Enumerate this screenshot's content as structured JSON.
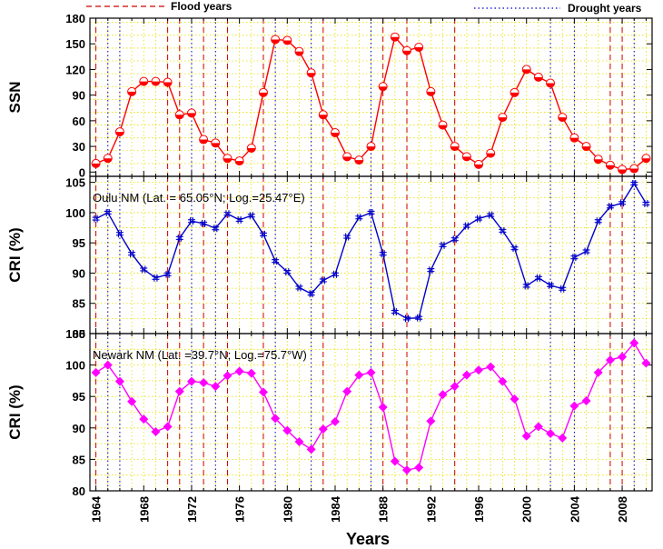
{
  "legend": {
    "flood_label": "Flood years",
    "drought_label": "Drought years",
    "flood_color": "#cc0000",
    "drought_color": "#0000cc"
  },
  "chart_data": {
    "type": "line",
    "xlabel": "Years",
    "x_range": [
      1963.5,
      2010.5
    ],
    "x_tick_labels": [
      "1964",
      "1968",
      "1972",
      "1976",
      "1980",
      "1984",
      "1988",
      "1992",
      "1996",
      "2000",
      "2004",
      "2008"
    ],
    "flood_years": [
      1964,
      1970,
      1971,
      1973,
      1975,
      1978,
      1983,
      1988,
      1990,
      1994,
      2007,
      2008
    ],
    "drought_years": [
      1965,
      1966,
      1972,
      1974,
      1979,
      1982,
      1987,
      2002,
      2004,
      2009
    ],
    "panels": [
      {
        "ylabel": "SSN",
        "annotation": "",
        "ylim": [
          -5,
          180
        ],
        "y_ticks": [
          0,
          30,
          60,
          90,
          120,
          150,
          180
        ],
        "color": "#ff0000",
        "marker": "half-circle",
        "x": [
          1964,
          1965,
          1966,
          1967,
          1968,
          1969,
          1970,
          1971,
          1972,
          1973,
          1974,
          1975,
          1976,
          1977,
          1978,
          1979,
          1980,
          1981,
          1982,
          1983,
          1984,
          1985,
          1986,
          1987,
          1988,
          1989,
          1990,
          1991,
          1992,
          1993,
          1994,
          1995,
          1996,
          1997,
          1998,
          1999,
          2000,
          2001,
          2002,
          2003,
          2004,
          2005,
          2006,
          2007,
          2008,
          2009,
          2010
        ],
        "values": [
          10,
          16,
          47,
          94,
          106,
          106,
          105,
          67,
          69,
          38,
          34,
          16,
          13,
          28,
          93,
          155,
          154,
          141,
          116,
          67,
          46,
          18,
          14,
          30,
          100,
          158,
          142,
          146,
          94,
          55,
          30,
          18,
          9,
          22,
          64,
          93,
          120,
          111,
          104,
          64,
          40,
          30,
          15,
          8,
          3,
          4,
          16
        ]
      },
      {
        "ylabel": "CRI (%)",
        "annotation": "Oulu NM (Lat. = 65.05°N; Log.=25.47°E)",
        "ylim": [
          80,
          106
        ],
        "y_ticks": [
          80,
          85,
          90,
          95,
          100,
          105
        ],
        "color": "#0000cc",
        "marker": "cross",
        "x": [
          1964,
          1965,
          1966,
          1967,
          1968,
          1969,
          1970,
          1971,
          1972,
          1973,
          1974,
          1975,
          1976,
          1977,
          1978,
          1979,
          1980,
          1981,
          1982,
          1983,
          1984,
          1985,
          1986,
          1987,
          1988,
          1989,
          1990,
          1991,
          1992,
          1993,
          1994,
          1995,
          1996,
          1997,
          1998,
          1999,
          2000,
          2001,
          2002,
          2003,
          2004,
          2005,
          2006,
          2007,
          2008,
          2009,
          2010
        ],
        "values": [
          99,
          100,
          96.5,
          93.2,
          90.6,
          89.2,
          89.8,
          95.8,
          98.6,
          98.2,
          97.4,
          99.8,
          98.8,
          99.5,
          96.4,
          92.0,
          90.2,
          87.6,
          86.6,
          88.8,
          89.8,
          96.0,
          99.2,
          100.0,
          93.2,
          83.6,
          82.5,
          82.6,
          90.5,
          94.6,
          95.6,
          97.8,
          99.0,
          99.6,
          97.0,
          94.1,
          87.9,
          89.2,
          88.0,
          87.4,
          92.6,
          93.6,
          98.6,
          101.0,
          101.6,
          104.8,
          101.5
        ]
      },
      {
        "ylabel": "CRI (%)",
        "annotation": "Newark NM (Lat. =39.7°N; Log.=75.7°W)",
        "ylim": [
          80,
          105
        ],
        "y_ticks": [
          80,
          85,
          90,
          95,
          100,
          105
        ],
        "color": "#ff00ff",
        "marker": "diamond",
        "x": [
          1964,
          1965,
          1966,
          1967,
          1968,
          1969,
          1970,
          1971,
          1972,
          1973,
          1974,
          1975,
          1976,
          1977,
          1978,
          1979,
          1980,
          1981,
          1982,
          1983,
          1984,
          1985,
          1986,
          1987,
          1988,
          1989,
          1990,
          1991,
          1992,
          1993,
          1994,
          1995,
          1996,
          1997,
          1998,
          1999,
          2000,
          2001,
          2002,
          2003,
          2004,
          2005,
          2006,
          2007,
          2008,
          2009,
          2010
        ],
        "values": [
          98.8,
          100,
          97.4,
          94.2,
          91.4,
          89.4,
          90.2,
          95.8,
          97.4,
          97.2,
          96.6,
          98.3,
          99.0,
          98.7,
          95.7,
          91.5,
          89.6,
          87.8,
          86.6,
          89.8,
          91.0,
          95.8,
          98.4,
          98.8,
          93.3,
          84.7,
          83.3,
          83.7,
          91.1,
          95.3,
          96.6,
          98.4,
          99.2,
          99.7,
          97.4,
          94.6,
          88.7,
          90.2,
          89.1,
          88.4,
          93.5,
          94.3,
          98.8,
          100.8,
          101.3,
          103.5,
          100.3
        ]
      }
    ]
  }
}
